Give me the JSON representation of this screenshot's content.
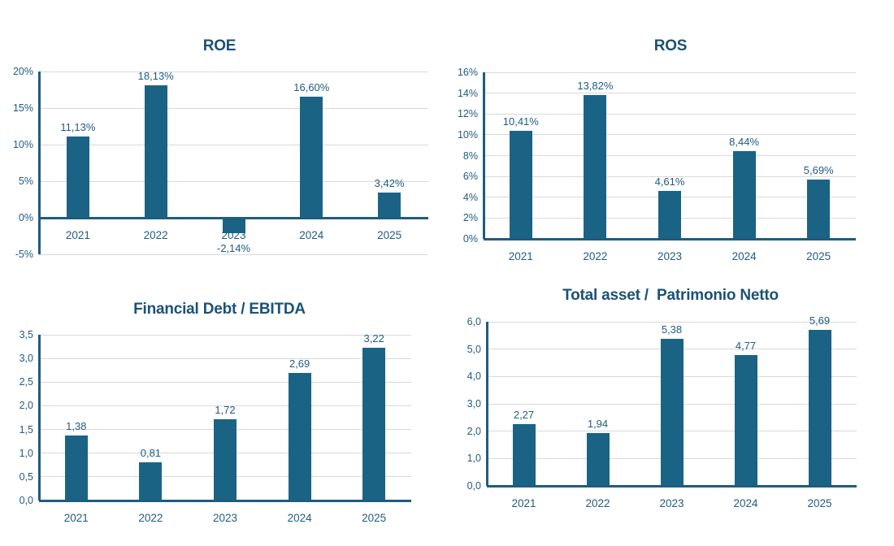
{
  "page": {
    "background": "#ffffff"
  },
  "colors": {
    "bar": "#1B6385",
    "axis": "#1F5C7E",
    "grid": "#D9D9D9",
    "title_text": "#1A5276",
    "label_text": "#1F5B84"
  },
  "chart_data": [
    {
      "type": "bar",
      "title": "ROE",
      "xlabel": "",
      "ylabel": "",
      "legend": "none",
      "grid": true,
      "categories": [
        "2021",
        "2022",
        "2023",
        "2024",
        "2025"
      ],
      "values": [
        11.13,
        18.13,
        -2.14,
        16.6,
        3.42
      ],
      "value_labels": [
        "11,13%",
        "18,13%",
        "-2,14%",
        "16,60%",
        "3,42%"
      ],
      "ylim": [
        -5,
        20
      ],
      "ytick_step": 5,
      "ytick_labels": [
        "-5%",
        "0%",
        "5%",
        "10%",
        "15%",
        "20%"
      ]
    },
    {
      "type": "bar",
      "title": "ROS",
      "xlabel": "",
      "ylabel": "",
      "legend": "none",
      "grid": true,
      "categories": [
        "2021",
        "2022",
        "2023",
        "2024",
        "2025"
      ],
      "values": [
        10.41,
        13.82,
        4.61,
        8.44,
        5.69
      ],
      "value_labels": [
        "10,41%",
        "13,82%",
        "4,61%",
        "8,44%",
        "5,69%"
      ],
      "ylim": [
        0,
        16
      ],
      "ytick_step": 2,
      "ytick_labels": [
        "0%",
        "2%",
        "4%",
        "6%",
        "8%",
        "10%",
        "12%",
        "14%",
        "16%"
      ]
    },
    {
      "type": "bar",
      "title": "Financial Debt / EBITDA",
      "xlabel": "",
      "ylabel": "",
      "legend": "none",
      "grid": true,
      "categories": [
        "2021",
        "2022",
        "2023",
        "2024",
        "2025"
      ],
      "values": [
        1.38,
        0.81,
        1.72,
        2.69,
        3.22
      ],
      "value_labels": [
        "1,38",
        "0,81",
        "1,72",
        "2,69",
        "3,22"
      ],
      "ylim": [
        0,
        3.5
      ],
      "ytick_step": 0.5,
      "ytick_labels": [
        "0,0",
        "0,5",
        "1,0",
        "1,5",
        "2,0",
        "2,5",
        "3,0",
        "3,5"
      ]
    },
    {
      "type": "bar",
      "title": "Total asset /  Patrimonio Netto",
      "xlabel": "",
      "ylabel": "",
      "legend": "none",
      "grid": true,
      "categories": [
        "2021",
        "2022",
        "2023",
        "2024",
        "2025"
      ],
      "values": [
        2.27,
        1.94,
        5.38,
        4.77,
        5.69
      ],
      "value_labels": [
        "2,27",
        "1,94",
        "5,38",
        "4,77",
        "5,69"
      ],
      "ylim": [
        0,
        6
      ],
      "ytick_step": 1,
      "ytick_labels": [
        "0,0",
        "1,0",
        "2,0",
        "3,0",
        "4,0",
        "5,0",
        "6,0"
      ]
    }
  ]
}
